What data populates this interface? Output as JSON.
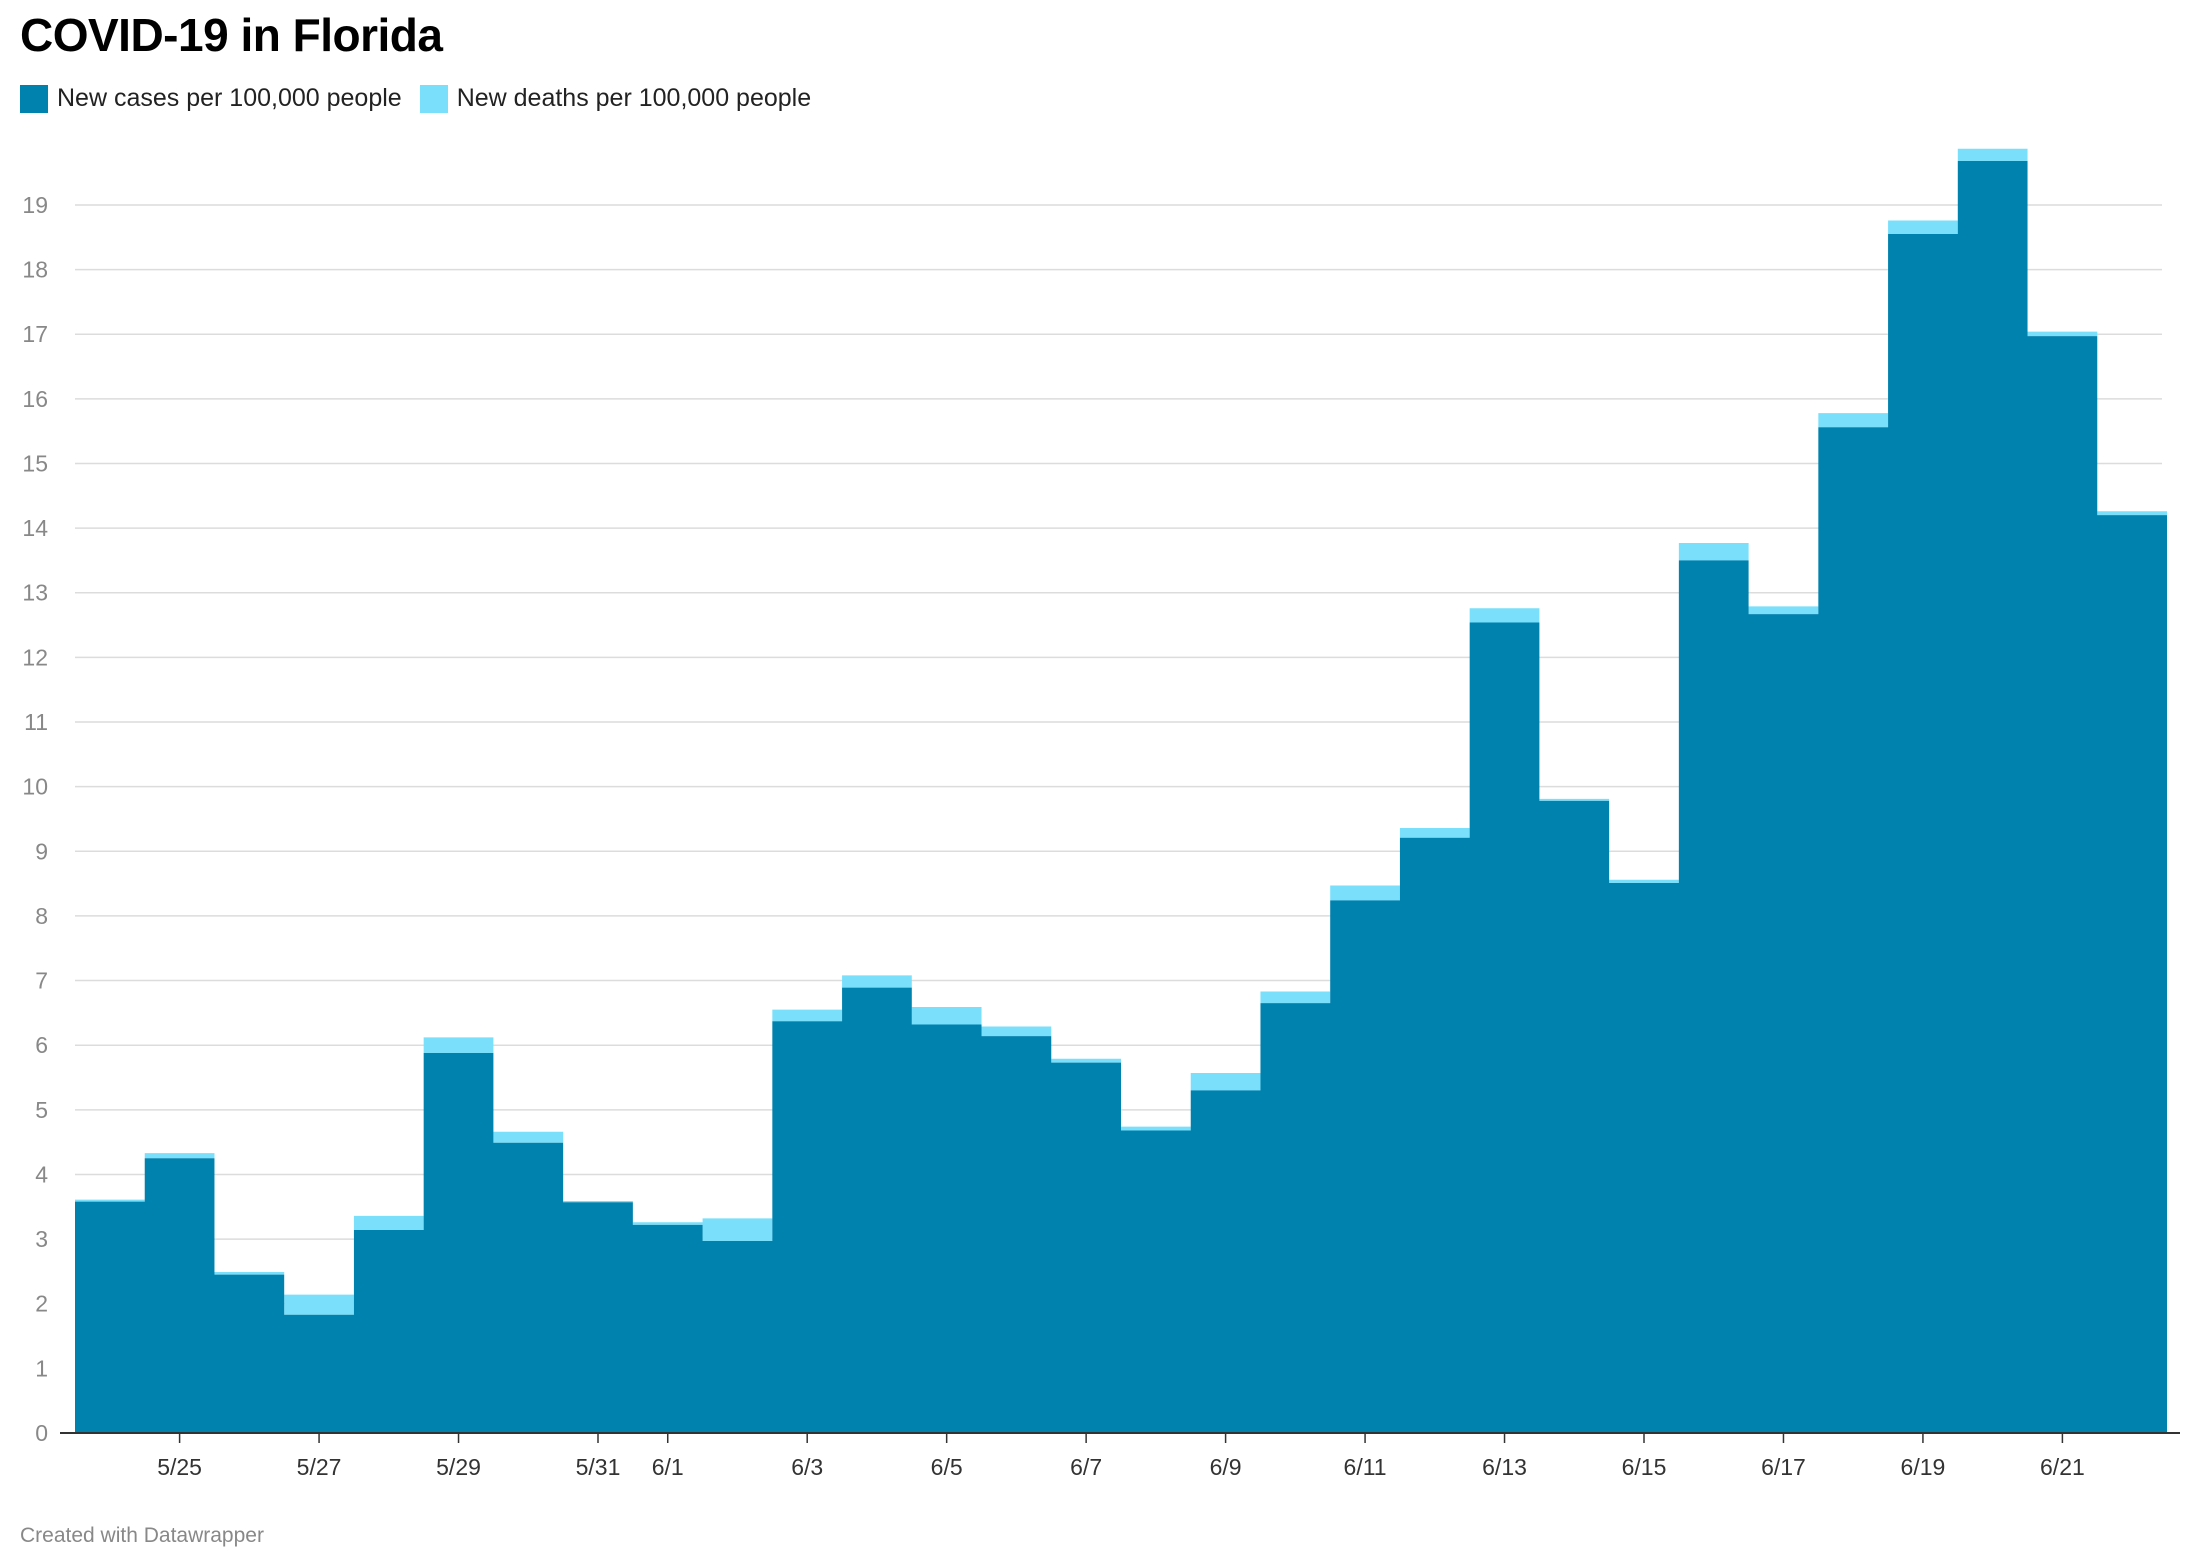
{
  "chart_data": {
    "type": "area",
    "title": "COVID-19 in Florida",
    "xlabel": "",
    "ylabel": "",
    "ylim": [
      0,
      19.85
    ],
    "yticks": [
      0,
      1,
      2,
      3,
      4,
      5,
      6,
      7,
      8,
      9,
      10,
      11,
      12,
      13,
      14,
      15,
      16,
      17,
      18,
      19
    ],
    "grid": true,
    "stacked": true,
    "step": true,
    "legend_position": "top-left",
    "x": [
      "5/24",
      "5/25",
      "5/26",
      "5/27",
      "5/28",
      "5/29",
      "5/30",
      "5/31",
      "6/1",
      "6/2",
      "6/3",
      "6/4",
      "6/5",
      "6/6",
      "6/7",
      "6/8",
      "6/9",
      "6/10",
      "6/11",
      "6/12",
      "6/13",
      "6/14",
      "6/15",
      "6/16",
      "6/17",
      "6/18",
      "6/19",
      "6/20",
      "6/21",
      "6/22"
    ],
    "xtick_labels": [
      "5/25",
      "5/27",
      "5/29",
      "5/31",
      "6/1",
      "6/3",
      "6/5",
      "6/7",
      "6/9",
      "6/11",
      "6/13",
      "6/15",
      "6/17",
      "6/19",
      "6/21"
    ],
    "series": [
      {
        "name": "New cases per 100,000 people",
        "color": "#0082ae",
        "values": [
          3.58,
          4.25,
          2.45,
          1.83,
          3.14,
          5.88,
          4.49,
          3.57,
          3.22,
          2.97,
          6.37,
          6.89,
          6.32,
          6.14,
          5.73,
          4.68,
          5.3,
          6.65,
          8.24,
          9.21,
          12.54,
          9.78,
          8.51,
          13.5,
          12.67,
          15.56,
          18.55,
          19.68,
          16.97,
          14.2
        ]
      },
      {
        "name": "New deaths per 100,000 people",
        "color": "#79dffb",
        "values": [
          0.03,
          0.08,
          0.04,
          0.31,
          0.22,
          0.24,
          0.17,
          0.02,
          0.04,
          0.35,
          0.18,
          0.19,
          0.27,
          0.15,
          0.06,
          0.06,
          0.27,
          0.18,
          0.23,
          0.15,
          0.22,
          0.03,
          0.05,
          0.27,
          0.12,
          0.22,
          0.21,
          0.19,
          0.07,
          0.06
        ]
      }
    ]
  },
  "footer": "Created with Datawrapper"
}
